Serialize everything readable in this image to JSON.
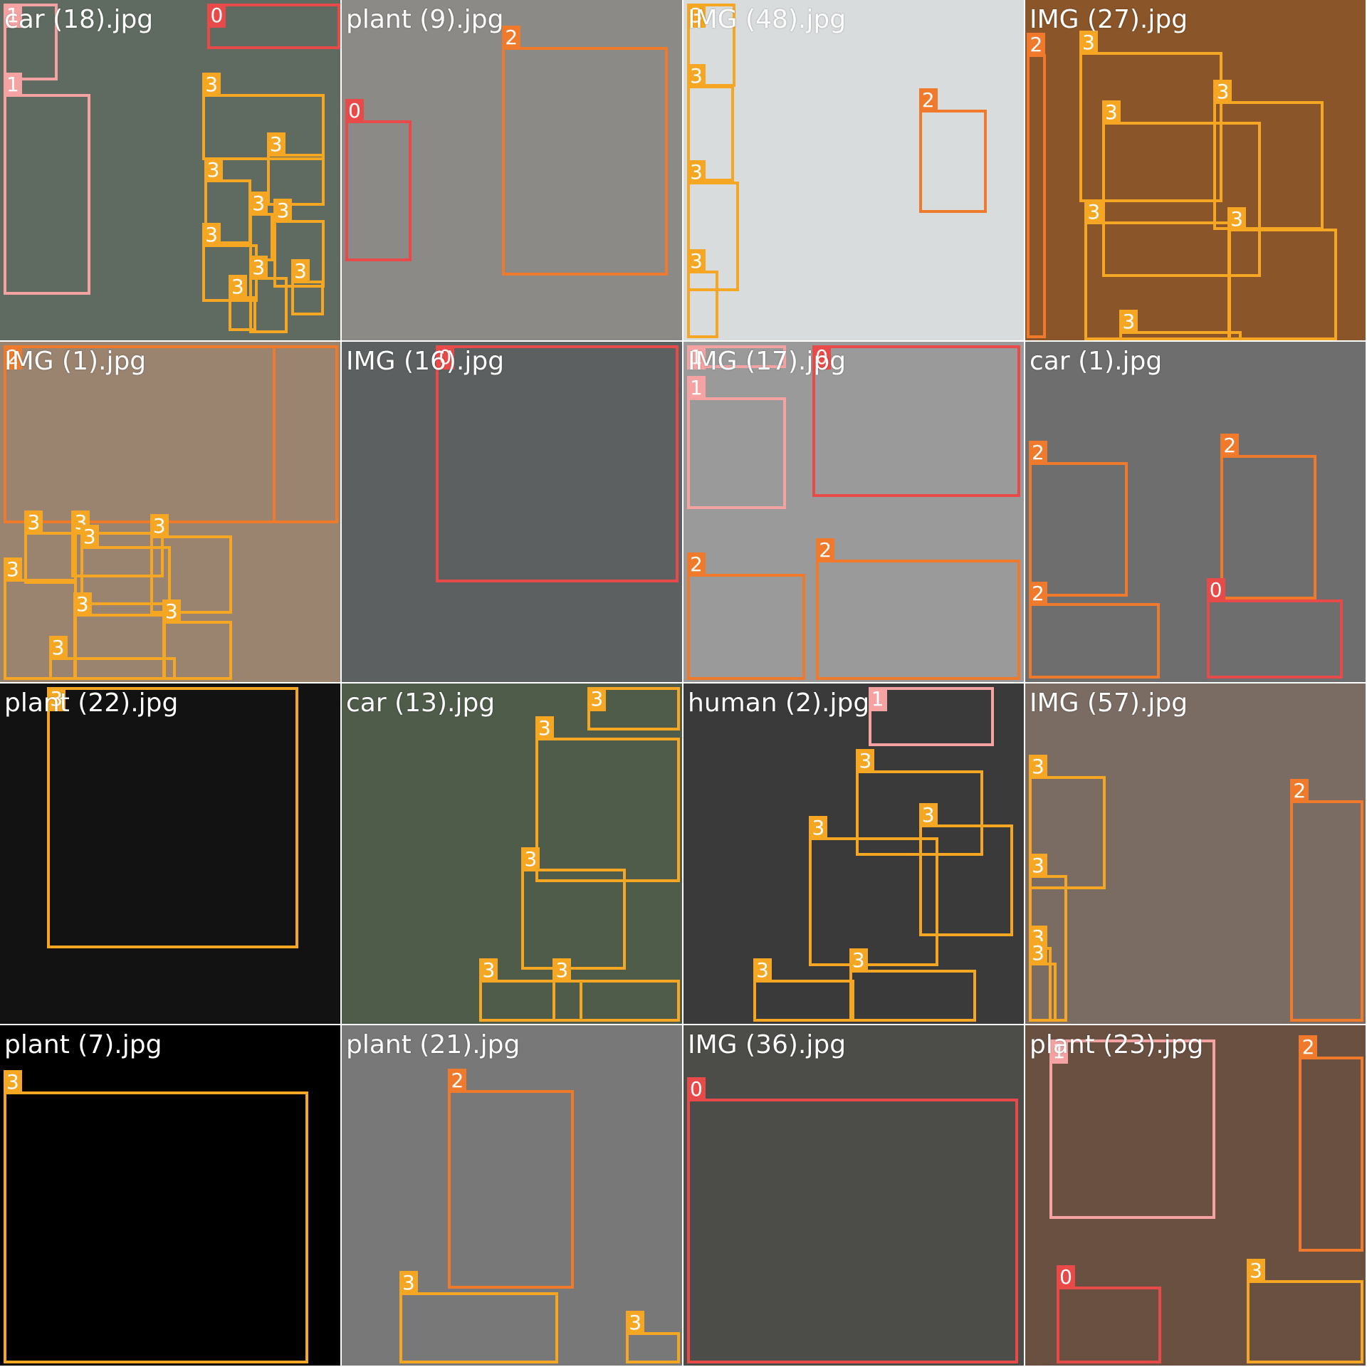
{
  "class_colors": {
    "0": "#e84a4a",
    "1": "#f4a2a2",
    "2": "#f07a2b",
    "3": "#f5a623"
  },
  "tiles": [
    {
      "filename": "car (18).jpg",
      "bg": "#5f6a60",
      "boxes": [
        {
          "c": "0",
          "b": [
            238,
            4,
            390,
            56
          ]
        },
        {
          "c": "1",
          "b": [
            4,
            4,
            66,
            92
          ]
        },
        {
          "c": "1",
          "b": [
            4,
            108,
            104,
            338
          ]
        },
        {
          "c": "3",
          "b": [
            232,
            108,
            372,
            184
          ]
        },
        {
          "c": "3",
          "b": [
            306,
            176,
            372,
            236
          ]
        },
        {
          "c": "3",
          "b": [
            234,
            206,
            288,
            280
          ]
        },
        {
          "c": "3",
          "b": [
            286,
            244,
            314,
            300
          ]
        },
        {
          "c": "3",
          "b": [
            314,
            252,
            372,
            330
          ]
        },
        {
          "c": "3",
          "b": [
            232,
            280,
            296,
            346
          ]
        },
        {
          "c": "3",
          "b": [
            262,
            340,
            294,
            380
          ]
        },
        {
          "c": "3",
          "b": [
            286,
            318,
            330,
            382
          ]
        },
        {
          "c": "3",
          "b": [
            334,
            322,
            372,
            362
          ]
        }
      ]
    },
    {
      "filename": "plant (9).jpg",
      "bg": "#8c8a86",
      "boxes": [
        {
          "c": "2",
          "b": [
            184,
            54,
            374,
            316
          ]
        },
        {
          "c": "0",
          "b": [
            4,
            138,
            80,
            300
          ]
        }
      ]
    },
    {
      "filename": "IMG (48).jpg",
      "bg": "#d9dcdd",
      "boxes": [
        {
          "c": "3",
          "b": [
            4,
            4,
            60,
            100
          ]
        },
        {
          "c": "3",
          "b": [
            4,
            98,
            58,
            208
          ]
        },
        {
          "c": "3",
          "b": [
            4,
            208,
            64,
            334
          ]
        },
        {
          "c": "3",
          "b": [
            4,
            310,
            40,
            388
          ]
        },
        {
          "c": "2",
          "b": [
            270,
            126,
            348,
            244
          ]
        }
      ]
    },
    {
      "filename": "IMG (27).jpg",
      "bg": "#8a5528",
      "boxes": [
        {
          "c": "2",
          "b": [
            2,
            62,
            24,
            388
          ]
        },
        {
          "c": "3",
          "b": [
            62,
            60,
            226,
            232
          ]
        },
        {
          "c": "3",
          "b": [
            216,
            116,
            342,
            264
          ]
        },
        {
          "c": "3",
          "b": [
            88,
            140,
            270,
            318
          ]
        },
        {
          "c": "3",
          "b": [
            68,
            254,
            236,
            390
          ]
        },
        {
          "c": "3",
          "b": [
            232,
            262,
            358,
            390
          ]
        },
        {
          "c": "3",
          "b": [
            108,
            380,
            248,
            390
          ]
        }
      ]
    },
    {
      "filename": "IMG (1).jpg",
      "bg": "#9a8470",
      "boxes": [
        {
          "c": "2",
          "b": [
            4,
            4,
            388,
            208
          ]
        },
        {
          "c": "2",
          "b": [
            4,
            4,
            316,
            208
          ]
        },
        {
          "c": "3",
          "b": [
            28,
            218,
            88,
            278
          ]
        },
        {
          "c": "3",
          "b": [
            82,
            218,
            188,
            270
          ]
        },
        {
          "c": "3",
          "b": [
            92,
            234,
            196,
            302
          ]
        },
        {
          "c": "3",
          "b": [
            172,
            222,
            266,
            312
          ]
        },
        {
          "c": "3",
          "b": [
            4,
            272,
            88,
            388
          ]
        },
        {
          "c": "3",
          "b": [
            84,
            312,
            190,
            388
          ]
        },
        {
          "c": "3",
          "b": [
            186,
            320,
            266,
            388
          ]
        },
        {
          "c": "3",
          "b": [
            56,
            362,
            202,
            388
          ]
        }
      ]
    },
    {
      "filename": "IMG (16).jpg",
      "bg": "#5d6060",
      "boxes": [
        {
          "c": "0",
          "b": [
            108,
            4,
            386,
            276
          ]
        }
      ]
    },
    {
      "filename": "IMG (17).jpg",
      "bg": "#9a9a9a",
      "boxes": [
        {
          "c": "1",
          "b": [
            4,
            4,
            118,
            30
          ]
        },
        {
          "c": "1",
          "b": [
            4,
            64,
            118,
            192
          ]
        },
        {
          "c": "0",
          "b": [
            148,
            4,
            386,
            178
          ]
        },
        {
          "c": "2",
          "b": [
            4,
            266,
            140,
            388
          ]
        },
        {
          "c": "2",
          "b": [
            152,
            250,
            386,
            388
          ]
        }
      ]
    },
    {
      "filename": "car (1).jpg",
      "bg": "#6e6e6e",
      "boxes": [
        {
          "c": "2",
          "b": [
            4,
            138,
            118,
            292
          ]
        },
        {
          "c": "2",
          "b": [
            224,
            130,
            334,
            296
          ]
        },
        {
          "c": "0",
          "b": [
            208,
            296,
            364,
            386
          ]
        },
        {
          "c": "2",
          "b": [
            4,
            300,
            154,
            386
          ]
        }
      ]
    },
    {
      "filename": "plant (22).jpg",
      "bg": "#121212",
      "boxes": [
        {
          "c": "3",
          "b": [
            54,
            4,
            342,
            304
          ]
        }
      ]
    },
    {
      "filename": "car (13).jpg",
      "bg": "#4f5c4a",
      "boxes": [
        {
          "c": "3",
          "b": [
            282,
            4,
            388,
            54
          ]
        },
        {
          "c": "3",
          "b": [
            222,
            62,
            388,
            228
          ]
        },
        {
          "c": "3",
          "b": [
            206,
            212,
            326,
            328
          ]
        },
        {
          "c": "3",
          "b": [
            158,
            340,
            276,
            388
          ]
        },
        {
          "c": "3",
          "b": [
            242,
            340,
            388,
            388
          ]
        }
      ]
    },
    {
      "filename": "human (2).jpg",
      "bg": "#3a3a3a",
      "boxes": [
        {
          "c": "1",
          "b": [
            212,
            4,
            356,
            72
          ]
        },
        {
          "c": "3",
          "b": [
            198,
            100,
            344,
            198
          ]
        },
        {
          "c": "3",
          "b": [
            270,
            162,
            378,
            290
          ]
        },
        {
          "c": "3",
          "b": [
            144,
            176,
            292,
            324
          ]
        },
        {
          "c": "3",
          "b": [
            80,
            340,
            196,
            388
          ]
        },
        {
          "c": "3",
          "b": [
            190,
            328,
            336,
            388
          ]
        }
      ]
    },
    {
      "filename": "IMG (57).jpg",
      "bg": "#7a6c62",
      "boxes": [
        {
          "c": "3",
          "b": [
            4,
            106,
            92,
            236
          ]
        },
        {
          "c": "3",
          "b": [
            4,
            220,
            48,
            388
          ]
        },
        {
          "c": "3",
          "b": [
            4,
            302,
            30,
            388
          ]
        },
        {
          "c": "3",
          "b": [
            4,
            320,
            36,
            388
          ]
        },
        {
          "c": "2",
          "b": [
            304,
            134,
            388,
            388
          ]
        }
      ]
    },
    {
      "filename": "plant (7).jpg",
      "bg": "#000000",
      "boxes": [
        {
          "c": "3",
          "b": [
            4,
            76,
            354,
            388
          ]
        }
      ]
    },
    {
      "filename": "plant (21).jpg",
      "bg": "#787878",
      "boxes": [
        {
          "c": "2",
          "b": [
            122,
            74,
            266,
            302
          ]
        },
        {
          "c": "3",
          "b": [
            66,
            306,
            248,
            388
          ]
        },
        {
          "c": "3",
          "b": [
            326,
            352,
            388,
            388
          ]
        }
      ]
    },
    {
      "filename": "IMG (36).jpg",
      "bg": "#4c4c48",
      "boxes": [
        {
          "c": "0",
          "b": [
            4,
            84,
            384,
            388
          ]
        }
      ]
    },
    {
      "filename": "plant (23).jpg",
      "bg": "#6a5040",
      "boxes": [
        {
          "c": "1",
          "b": [
            28,
            16,
            218,
            222
          ]
        },
        {
          "c": "2",
          "b": [
            314,
            36,
            388,
            260
          ]
        },
        {
          "c": "0",
          "b": [
            36,
            300,
            156,
            388
          ]
        },
        {
          "c": "3",
          "b": [
            254,
            292,
            388,
            388
          ]
        }
      ]
    }
  ]
}
